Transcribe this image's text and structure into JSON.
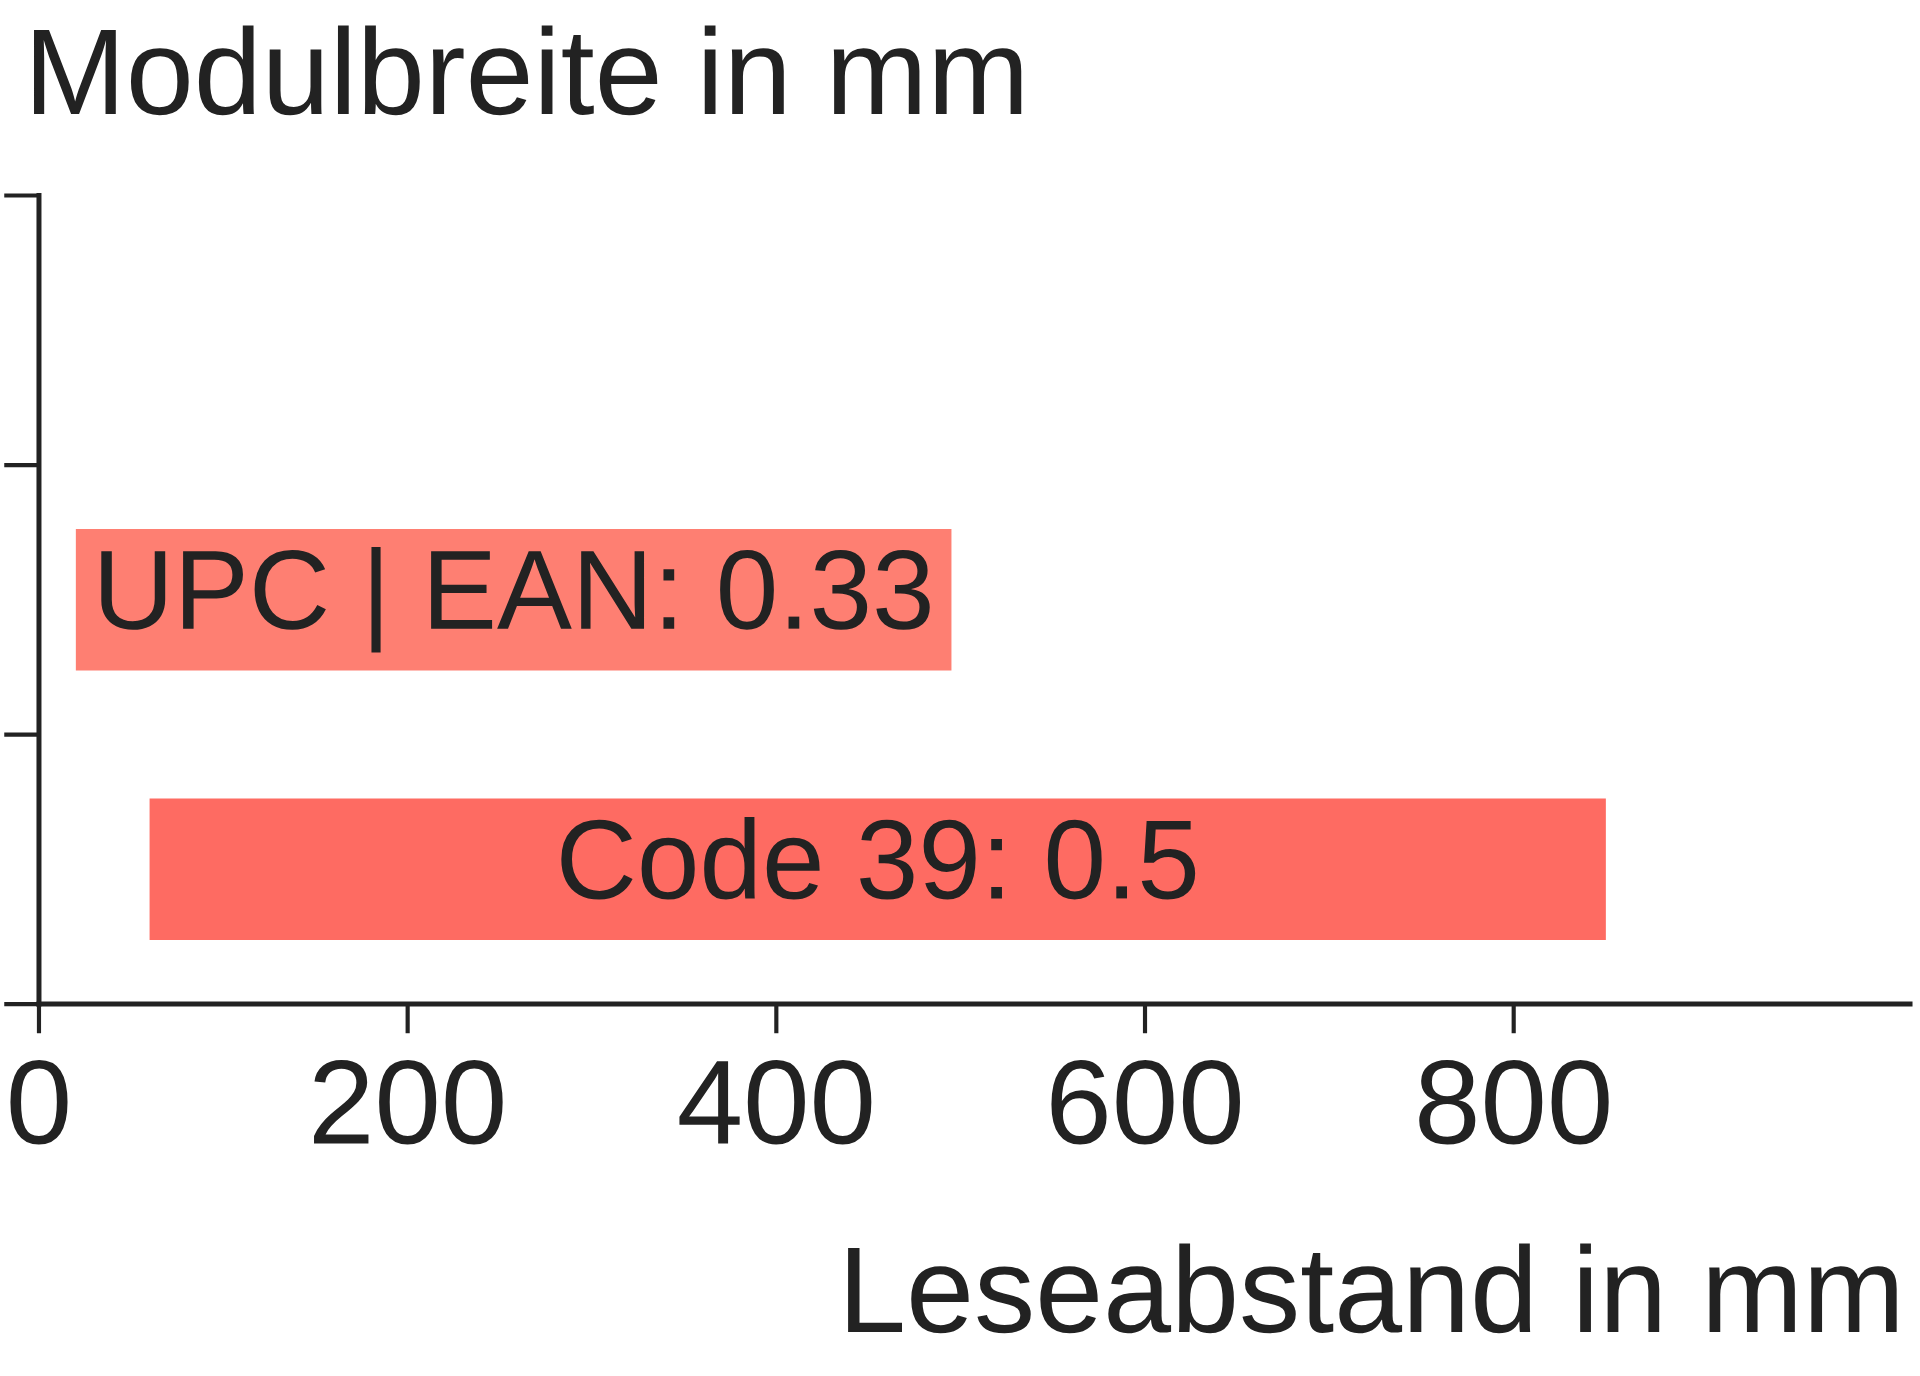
{
  "chart_data": {
    "type": "bar",
    "orientation": "horizontal",
    "ylabel": "Modulbreite in mm",
    "xlabel": "Leseabstand in mm",
    "categories": [
      null,
      "UPC | EAN: 0.33",
      "Code 39: 0.5"
    ],
    "base": [
      null,
      20,
      60
    ],
    "values": [
      null,
      475,
      790
    ],
    "colors": [
      null,
      "#fe7f72",
      "#fe6b62"
    ],
    "xlim": [
      0,
      1015
    ],
    "xticks": [
      0,
      200,
      400,
      600,
      800
    ],
    "grid": false
  }
}
